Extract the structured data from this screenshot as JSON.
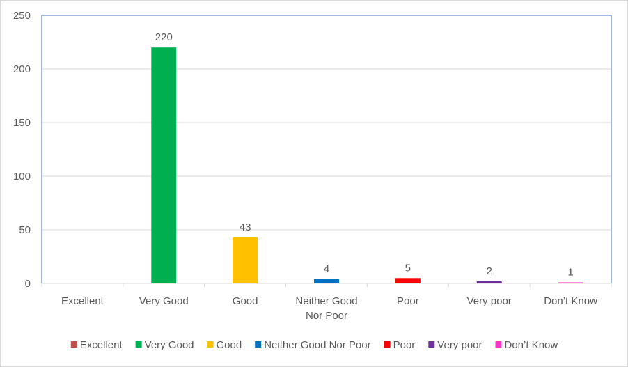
{
  "chart_data": {
    "type": "bar",
    "title": "",
    "xlabel": "",
    "ylabel": "",
    "ylim": [
      0,
      250
    ],
    "yticks": [
      0,
      50,
      100,
      150,
      200,
      250
    ],
    "grid": true,
    "legend_position": "bottom",
    "categories": [
      "Excellent",
      "Very Good",
      "Good",
      "Neither Good Nor Poor",
      "Poor",
      "Very poor",
      "Don’t Know"
    ],
    "category_lines": [
      [
        "Excellent"
      ],
      [
        "Very Good"
      ],
      [
        "Good"
      ],
      [
        "Neither Good",
        "Nor Poor"
      ],
      [
        "Poor"
      ],
      [
        "Very poor"
      ],
      [
        "Don’t Know"
      ]
    ],
    "values": [
      null,
      220,
      43,
      4,
      5,
      2,
      1
    ],
    "colors": [
      "#C0504D",
      "#00B050",
      "#FFC000",
      "#0070C0",
      "#FF0000",
      "#7030A0",
      "#FF33CC"
    ],
    "legend": [
      "Excellent",
      "Very Good",
      "Good",
      "Neither Good Nor Poor",
      "Poor",
      "Very poor",
      "Don’t Know"
    ]
  }
}
